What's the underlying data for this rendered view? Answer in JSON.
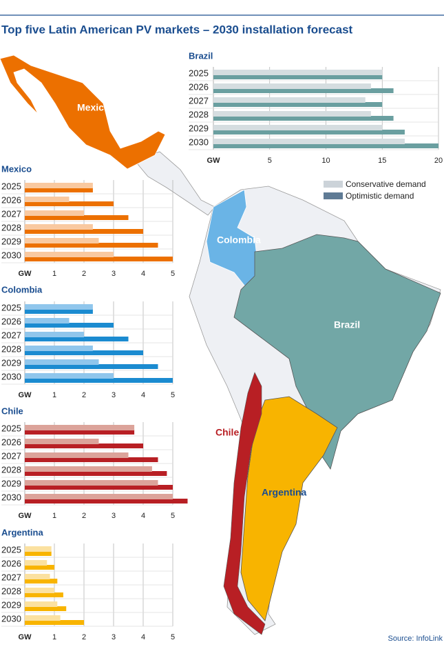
{
  "title": "Top five Latin American PV markets – 2030 installation forecast",
  "source": "Source: InfoLink",
  "legend_colors": [
    "#ccd3d9",
    "#5f7b95"
  ],
  "map": {
    "labels": [
      "Mexico",
      "Colombia",
      "Brazil",
      "Chile",
      "Argentina"
    ]
  },
  "chart_data": [
    {
      "type": "bar",
      "horizontal": true,
      "title": "Brazil",
      "categories": [
        "2025",
        "2026",
        "2027",
        "2028",
        "2029",
        "2030"
      ],
      "series": [
        {
          "name": "Conservative demand",
          "color": "#d5dde0",
          "values": [
            15,
            14,
            13.5,
            14,
            15,
            17
          ]
        },
        {
          "name": "Optimistic demand",
          "color": "#6a9fa0",
          "values": [
            15,
            16,
            15,
            16,
            17,
            20
          ]
        }
      ],
      "xlim": [
        0,
        20
      ],
      "xticks": [
        5,
        10,
        15,
        20
      ],
      "axis_label": "GW",
      "grid": true
    },
    {
      "type": "bar",
      "horizontal": true,
      "title": "Mexico",
      "categories": [
        "2025",
        "2026",
        "2027",
        "2028",
        "2029",
        "2030"
      ],
      "series": [
        {
          "name": "Conservative demand",
          "color": "#f9c9a0",
          "values": [
            2.3,
            1.5,
            2,
            2.3,
            2.5,
            3
          ]
        },
        {
          "name": "Optimistic demand",
          "color": "#ec7000",
          "values": [
            2.3,
            3,
            3.5,
            4,
            4.5,
            5
          ]
        }
      ],
      "xlim": [
        0,
        5
      ],
      "xticks": [
        1,
        2,
        3,
        4,
        5
      ],
      "axis_label": "GW",
      "grid": true
    },
    {
      "type": "bar",
      "horizontal": true,
      "title": "Colombia",
      "categories": [
        "2025",
        "2026",
        "2027",
        "2028",
        "2029",
        "2030"
      ],
      "series": [
        {
          "name": "Conservative demand",
          "color": "#90c6ec",
          "values": [
            2.3,
            1.5,
            2,
            2.3,
            2.5,
            3
          ]
        },
        {
          "name": "Optimistic demand",
          "color": "#1b8bd0",
          "values": [
            2.3,
            3,
            3.5,
            4,
            4.5,
            5
          ]
        }
      ],
      "xlim": [
        0,
        5
      ],
      "xticks": [
        1,
        2,
        3,
        4,
        5
      ],
      "axis_label": "GW",
      "grid": true
    },
    {
      "type": "bar",
      "horizontal": true,
      "title": "Chile",
      "categories": [
        "2025",
        "2026",
        "2027",
        "2028",
        "2029",
        "2030"
      ],
      "series": [
        {
          "name": "Conservative demand",
          "color": "#dca39a",
          "values": [
            3.7,
            2.5,
            3.5,
            4.3,
            4.5,
            5
          ]
        },
        {
          "name": "Optimistic demand",
          "color": "#b81f24",
          "values": [
            3.7,
            4,
            4.5,
            4.8,
            5,
            5.5
          ]
        }
      ],
      "xlim": [
        0,
        5
      ],
      "xticks": [
        1,
        2,
        3,
        4,
        5
      ],
      "axis_label": "GW",
      "grid": true
    },
    {
      "type": "bar",
      "horizontal": true,
      "title": "Argentina",
      "categories": [
        "2025",
        "2026",
        "2027",
        "2028",
        "2029",
        "2030"
      ],
      "series": [
        {
          "name": "Conservative demand",
          "color": "#fbe1a0",
          "values": [
            0.9,
            0.75,
            0.85,
            1,
            1.1,
            1.2
          ]
        },
        {
          "name": "Optimistic demand",
          "color": "#f8b400",
          "values": [
            0.9,
            1,
            1.1,
            1.3,
            1.4,
            2
          ]
        }
      ],
      "xlim": [
        0,
        5
      ],
      "xticks": [
        1,
        2,
        3,
        4,
        5
      ],
      "axis_label": "GW",
      "grid": true
    }
  ]
}
